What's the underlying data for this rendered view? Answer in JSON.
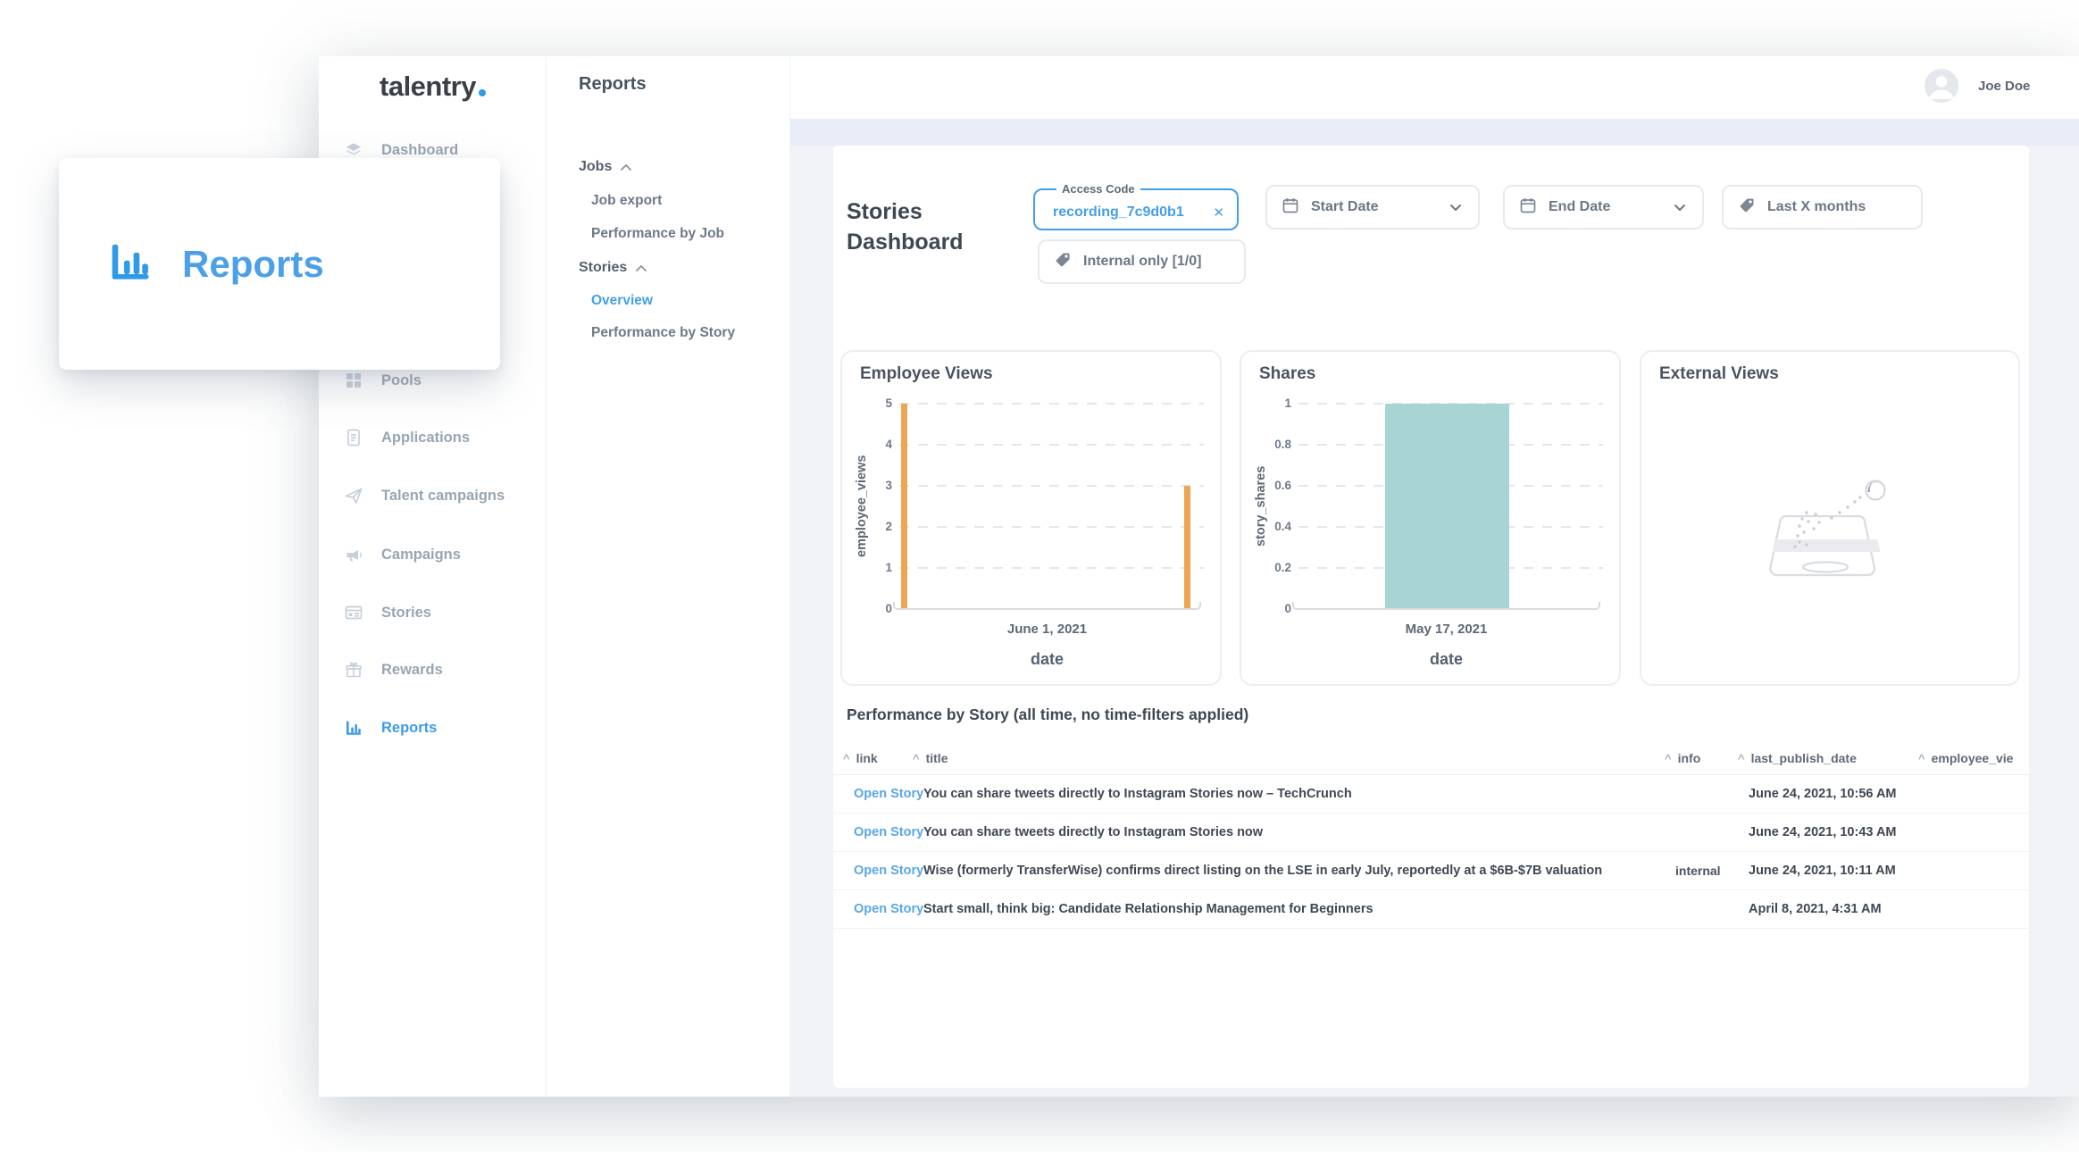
{
  "callout": {
    "label": "Reports"
  },
  "brand": {
    "name": "talentry"
  },
  "topbar": {
    "user_name": "Joe Doe"
  },
  "sidebar": {
    "items": [
      {
        "label": "Dashboard",
        "icon": "layers"
      },
      {
        "label": "Pools",
        "icon": "grid"
      },
      {
        "label": "Applications",
        "icon": "document"
      },
      {
        "label": "Talent campaigns",
        "icon": "paper-plane"
      },
      {
        "label": "Campaigns",
        "icon": "megaphone"
      },
      {
        "label": "Stories",
        "icon": "story-card"
      },
      {
        "label": "Rewards",
        "icon": "gift"
      },
      {
        "label": "Reports",
        "icon": "bar-chart",
        "active": true
      }
    ]
  },
  "reports_nav": {
    "title": "Reports",
    "entries": [
      {
        "label": "Jobs",
        "type": "section"
      },
      {
        "label": "Job export",
        "type": "item"
      },
      {
        "label": "Performance by Job",
        "type": "item"
      },
      {
        "label": "Stories",
        "type": "section"
      },
      {
        "label": "Overview",
        "type": "item",
        "active": true
      },
      {
        "label": "Performance by Story",
        "type": "item"
      }
    ]
  },
  "page": {
    "title": "Stories Dashboard"
  },
  "filters": {
    "access_code": {
      "label": "Access Code",
      "value": "recording_7c9d0b1",
      "clear_glyph": "✕"
    },
    "start_date": {
      "label": "Start Date"
    },
    "end_date": {
      "label": "End Date"
    },
    "last_x_months": {
      "label": "Last X months"
    },
    "internal_only": {
      "label": "Internal only [1/0]"
    }
  },
  "external_views": {
    "title": "External Views"
  },
  "colors": {
    "accent_blue": "#449FE8",
    "orange_bar": "#ECA553",
    "teal_bar": "#A7D5D3",
    "band": "#E9EDF8"
  },
  "chart_data": [
    {
      "type": "bar",
      "title": "Employee Views",
      "ylabel": "employee_views",
      "xlabel": "date",
      "ylim": [
        0,
        5
      ],
      "yticks": [
        5,
        4,
        3,
        2,
        1,
        0
      ],
      "xticks": [
        "June 1, 2021"
      ],
      "grid": "dashed-horizontal",
      "legend": "none",
      "bar_color": "#ECA553",
      "bars": [
        {
          "value": 5,
          "pos": 0.012,
          "width": 0.022
        },
        {
          "value": 3,
          "pos": 0.958,
          "width": 0.022
        }
      ]
    },
    {
      "type": "bar",
      "title": "Shares",
      "ylabel": "story_shares",
      "xlabel": "date",
      "ylim": [
        0,
        1
      ],
      "yticks": [
        1,
        0.8,
        0.6,
        0.4,
        0.2,
        0
      ],
      "xticks": [
        "May 17, 2021"
      ],
      "grid": "dashed-horizontal",
      "legend": "none",
      "bar_color": "#A7D5D3",
      "bars": [
        {
          "value": 1,
          "pos": 0.297,
          "width": 0.413
        }
      ]
    }
  ],
  "table": {
    "title": "Performance by Story (all time, no time-filters applied)",
    "sort_caret": "^",
    "columns": [
      {
        "label": "link"
      },
      {
        "label": "title"
      },
      {
        "label": "info"
      },
      {
        "label": "last_publish_date"
      },
      {
        "label": "employee_vie"
      }
    ],
    "rows": [
      {
        "link": "Open Story",
        "title": "You can share tweets directly to Instagram Stories now – TechCrunch",
        "info": "",
        "last_publish_date": "June 24, 2021, 10:56 AM"
      },
      {
        "link": "Open Story",
        "title": "You can share tweets directly to Instagram Stories now",
        "info": "",
        "last_publish_date": "June 24, 2021, 10:43 AM"
      },
      {
        "link": "Open Story",
        "title": "Wise (formerly TransferWise) confirms direct listing on the LSE in early July, reportedly at a $6B-$7B valuation",
        "info": "internal",
        "last_publish_date": "June 24, 2021, 10:11 AM"
      },
      {
        "link": "Open Story",
        "title": "Start small, think big: Candidate Relationship Management for Beginners",
        "info": "",
        "last_publish_date": "April 8, 2021, 4:31 AM"
      }
    ]
  }
}
